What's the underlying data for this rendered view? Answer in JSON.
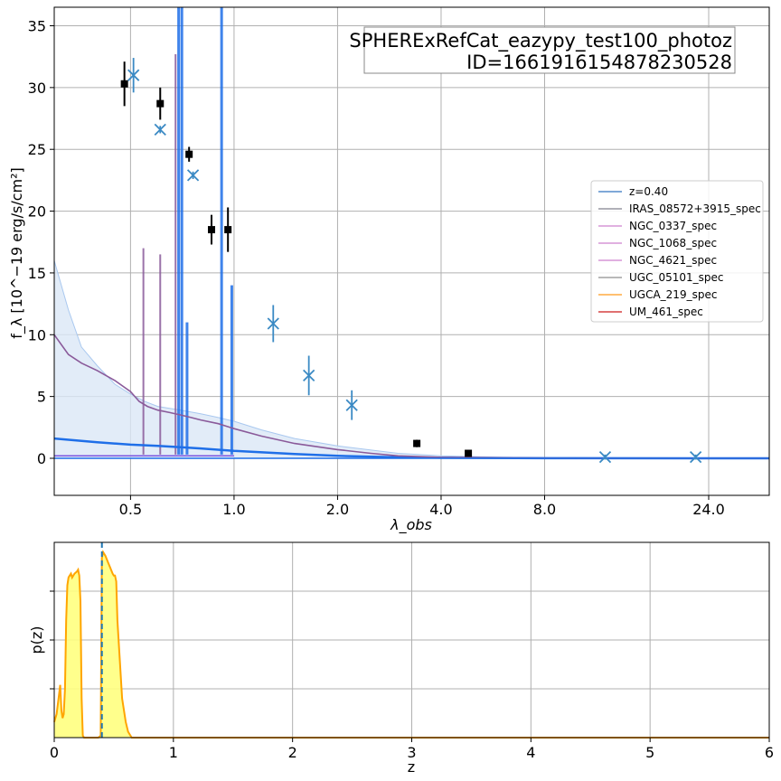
{
  "colors": {
    "model_main": "#1f6fe8",
    "model_light": "#a9c8ef",
    "model_faint": "#dbe7f6",
    "template_purple": "#8a5a9a",
    "violet": "#7a55e0",
    "obs_marker": "#000000",
    "model_marker": "#3b8ac4",
    "pz_line": "#ffa500",
    "pz_fill": "#ffff80",
    "zbest_line": "#1f77b4"
  },
  "chart_data": [
    {
      "type": "scatter",
      "title_lines": [
        "SPHERExRefCat_eazypy_test100_photoz",
        "ID=1661916154878230528"
      ],
      "xlabel": "λ_obs",
      "ylabel": "f_λ [10^−19 erg/s/cm²]",
      "xscale": "log",
      "xlim": [
        0.3,
        36
      ],
      "ylim": [
        -3,
        36.5
      ],
      "xticks": [
        0.5,
        1.0,
        2.0,
        4.0,
        8.0,
        24.0
      ],
      "xtick_labels": [
        "0.5",
        "1.0",
        "2.0",
        "4.0",
        "8.0",
        "24.0"
      ],
      "yticks": [
        0,
        5,
        10,
        15,
        20,
        25,
        30,
        35
      ],
      "ytick_labels": [
        "0",
        "5",
        "10",
        "15",
        "20",
        "25",
        "30",
        "35"
      ],
      "grid": true,
      "legend_placement": "center-right",
      "legend": [
        {
          "label": "z=0.40",
          "color": "#7fa8d8"
        },
        {
          "label": "IRAS_08572+3915_spec",
          "color": "#b0b0b8"
        },
        {
          "label": "NGC_0337_spec",
          "color": "#e0b0e0"
        },
        {
          "label": "NGC_1068_spec",
          "color": "#e0b0e0"
        },
        {
          "label": "NGC_4621_spec",
          "color": "#e0b0e0"
        },
        {
          "label": "UGC_05101_spec",
          "color": "#b8b8b8"
        },
        {
          "label": "UGCA_219_spec",
          "color": "#ffc070"
        },
        {
          "label": "UM_461_spec",
          "color": "#e07070"
        }
      ],
      "observed_points": [
        {
          "x": 0.48,
          "y": 30.3,
          "yerr": 1.8
        },
        {
          "x": 0.61,
          "y": 28.7,
          "yerr": 1.3
        },
        {
          "x": 0.74,
          "y": 24.6,
          "yerr": 0.6
        },
        {
          "x": 0.86,
          "y": 18.5,
          "yerr": 1.2
        },
        {
          "x": 0.96,
          "y": 18.5,
          "yerr": 1.8
        },
        {
          "x": 3.4,
          "y": 1.2,
          "yerr": 0.3
        },
        {
          "x": 4.8,
          "y": 0.4,
          "yerr": 0.2
        }
      ],
      "model_points": [
        {
          "x": 0.51,
          "y": 31.0,
          "yerr": 1.4
        },
        {
          "x": 0.61,
          "y": 26.6,
          "yerr": 0.3
        },
        {
          "x": 0.76,
          "y": 22.9,
          "yerr": 0.3
        },
        {
          "x": 1.3,
          "y": 10.9,
          "yerr": 1.5
        },
        {
          "x": 1.65,
          "y": 6.7,
          "yerr": 1.6
        },
        {
          "x": 2.2,
          "y": 4.3,
          "yerr": 1.2
        },
        {
          "x": 12.0,
          "y": 0.1,
          "yerr": 0.2
        },
        {
          "x": 22.0,
          "y": 0.1,
          "yerr": 0.2
        }
      ],
      "template_curve": {
        "x": [
          0.3,
          0.33,
          0.36,
          0.4,
          0.45,
          0.5,
          0.53,
          0.56,
          0.6,
          0.65,
          0.7,
          0.75,
          0.8,
          0.9,
          1.0,
          1.2,
          1.5,
          2.0,
          2.5,
          3.0,
          4.0,
          6.0,
          10.0,
          20.0,
          36.0
        ],
        "y": [
          10.0,
          8.4,
          7.7,
          7.1,
          6.3,
          5.4,
          4.6,
          4.2,
          3.9,
          3.7,
          3.5,
          3.3,
          3.1,
          2.8,
          2.4,
          1.8,
          1.2,
          0.7,
          0.4,
          0.2,
          0.08,
          0.03,
          0.01,
          0.0,
          0.0
        ]
      },
      "envelope_curve": {
        "x": [
          0.3,
          0.33,
          0.36,
          0.4,
          0.45,
          0.5,
          0.55,
          0.6,
          0.7,
          0.8,
          0.9,
          1.0,
          1.2,
          1.5,
          2.0,
          3.0,
          4.0,
          6.0,
          10.0,
          36.0
        ],
        "y": [
          16.0,
          12.0,
          9.0,
          7.5,
          6.0,
          5.2,
          4.6,
          4.2,
          3.9,
          3.6,
          3.3,
          3.0,
          2.3,
          1.6,
          1.0,
          0.4,
          0.2,
          0.08,
          0.03,
          0.0
        ]
      },
      "model_curve": {
        "x": [
          0.3,
          0.4,
          0.5,
          0.6,
          0.7,
          0.8,
          1.0,
          1.5,
          2.0,
          3.0,
          4.0,
          8.0,
          36.0
        ],
        "y": [
          1.6,
          1.3,
          1.1,
          1.0,
          0.9,
          0.8,
          0.6,
          0.35,
          0.2,
          0.08,
          0.04,
          0.01,
          0.0
        ]
      },
      "emission_lines": [
        {
          "x": 0.545,
          "peak": 17.0,
          "color": "#8a5a9a"
        },
        {
          "x": 0.61,
          "peak": 16.5,
          "color": "#8a5a9a"
        },
        {
          "x": 0.676,
          "peak": 32.7,
          "color": "#8a5a9a"
        },
        {
          "x": 0.69,
          "peak": 36.5,
          "color": "#1f6fe8"
        },
        {
          "x": 0.705,
          "peak": 36.5,
          "color": "#1f6fe8"
        },
        {
          "x": 0.73,
          "peak": 11.0,
          "color": "#1f6fe8"
        },
        {
          "x": 0.92,
          "peak": 36.5,
          "color": "#1f6fe8"
        },
        {
          "x": 0.985,
          "peak": 14.0,
          "color": "#1f6fe8"
        }
      ]
    },
    {
      "type": "area",
      "xlabel": "z",
      "ylabel": "p(z)",
      "xlim": [
        0,
        6
      ],
      "ylim": [
        0,
        1.0
      ],
      "xticks": [
        0,
        1,
        2,
        3,
        4,
        5,
        6
      ],
      "xtick_labels": [
        "0",
        "1",
        "2",
        "3",
        "4",
        "5",
        "6"
      ],
      "yticks": [
        0.25,
        0.5,
        0.75
      ],
      "grid": true,
      "z_best": 0.4,
      "pz": {
        "x": [
          0,
          0.02,
          0.04,
          0.05,
          0.06,
          0.07,
          0.08,
          0.09,
          0.1,
          0.11,
          0.12,
          0.13,
          0.14,
          0.15,
          0.17,
          0.19,
          0.2,
          0.21,
          0.22,
          0.23,
          0.24,
          0.25,
          0.27,
          0.29,
          0.31,
          0.33,
          0.35,
          0.37,
          0.39,
          0.4,
          0.41,
          0.43,
          0.45,
          0.47,
          0.49,
          0.5,
          0.51,
          0.52,
          0.53,
          0.55,
          0.57,
          0.6,
          0.62,
          0.65,
          0.7,
          1.0,
          6.0
        ],
        "y": [
          0.08,
          0.12,
          0.22,
          0.27,
          0.14,
          0.1,
          0.12,
          0.25,
          0.6,
          0.78,
          0.82,
          0.83,
          0.84,
          0.82,
          0.84,
          0.85,
          0.86,
          0.83,
          0.7,
          0.2,
          0.01,
          0.0,
          0.0,
          0.0,
          0.0,
          0.0,
          0.0,
          0.0,
          0.01,
          0.92,
          0.95,
          0.93,
          0.9,
          0.87,
          0.84,
          0.83,
          0.83,
          0.8,
          0.6,
          0.4,
          0.2,
          0.08,
          0.03,
          0.0,
          0.0,
          0.0,
          0.0
        ]
      }
    }
  ]
}
